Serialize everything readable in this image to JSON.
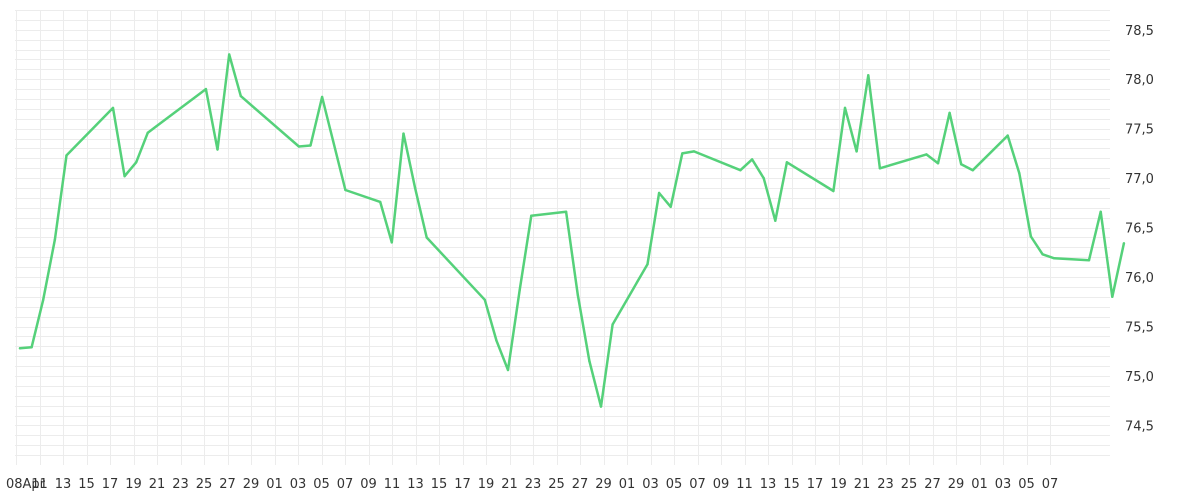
{
  "chart_data": {
    "type": "line",
    "title": "",
    "xlabel": "",
    "ylabel": "",
    "ylim": [
      74.1,
      78.7
    ],
    "y_ticks": [
      "78,5",
      "78,0",
      "77,5",
      "77,0",
      "76,5",
      "76,0",
      "75,5",
      "75,0",
      "74,5"
    ],
    "x_tick_labels": [
      "08Apr",
      "11",
      "13",
      "15",
      "17",
      "19",
      "21",
      "23",
      "25",
      "27",
      "29",
      "01",
      "03",
      "05",
      "07",
      "09",
      "11",
      "13",
      "15",
      "17",
      "19",
      "21",
      "23",
      "25",
      "27",
      "29",
      "01",
      "03",
      "05",
      "07",
      "09",
      "11",
      "13",
      "15",
      "17",
      "19",
      "21",
      "23",
      "25",
      "27",
      "29",
      "01",
      "03",
      "05",
      "07"
    ],
    "grid": true,
    "y_axis_position": "right",
    "legend": "none",
    "series": [
      {
        "color": "#55d17a",
        "points": [
          [
            0,
            75.28
          ],
          [
            1,
            75.29
          ],
          [
            2,
            75.77
          ],
          [
            3,
            76.38
          ],
          [
            4,
            77.23
          ],
          [
            8,
            77.71
          ],
          [
            9,
            77.02
          ],
          [
            10,
            77.16
          ],
          [
            11,
            77.46
          ],
          [
            16,
            77.9
          ],
          [
            17,
            77.29
          ],
          [
            18,
            78.25
          ],
          [
            19,
            77.83
          ],
          [
            24,
            77.32
          ],
          [
            25,
            77.33
          ],
          [
            26,
            77.82
          ],
          [
            28,
            76.88
          ],
          [
            31,
            76.76
          ],
          [
            32,
            76.35
          ],
          [
            33,
            77.45
          ],
          [
            34,
            76.9
          ],
          [
            35,
            76.4
          ],
          [
            40,
            75.77
          ],
          [
            41,
            75.36
          ],
          [
            42,
            75.06
          ],
          [
            43,
            75.87
          ],
          [
            44,
            76.62
          ],
          [
            47,
            76.66
          ],
          [
            48,
            75.82
          ],
          [
            49,
            75.15
          ],
          [
            50,
            74.69
          ],
          [
            51,
            75.52
          ],
          [
            54,
            76.13
          ],
          [
            55,
            76.85
          ],
          [
            56,
            76.71
          ],
          [
            57,
            77.25
          ],
          [
            58,
            77.27
          ],
          [
            62,
            77.08
          ],
          [
            63,
            77.19
          ],
          [
            64,
            77.0
          ],
          [
            65,
            76.57
          ],
          [
            66,
            77.16
          ],
          [
            70,
            76.87
          ],
          [
            71,
            77.71
          ],
          [
            72,
            77.27
          ],
          [
            73,
            78.04
          ],
          [
            74,
            77.1
          ],
          [
            78,
            77.24
          ],
          [
            79,
            77.15
          ],
          [
            80,
            77.66
          ],
          [
            81,
            77.14
          ],
          [
            82,
            77.08
          ],
          [
            85,
            77.43
          ],
          [
            86,
            77.05
          ],
          [
            87,
            76.41
          ],
          [
            88,
            76.23
          ],
          [
            89,
            76.19
          ],
          [
            92,
            76.17
          ],
          [
            93,
            76.66
          ],
          [
            94,
            75.8
          ],
          [
            95,
            76.34
          ]
        ]
      }
    ]
  }
}
